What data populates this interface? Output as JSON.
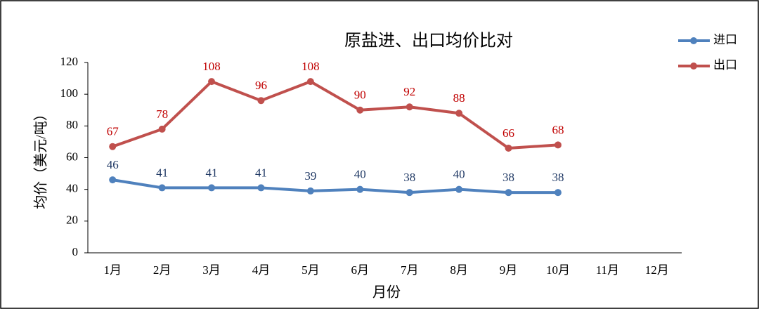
{
  "chart_data": {
    "type": "line",
    "title": "原盐进、出口均价比对",
    "x_label": "月份",
    "y_label": "均价（美元/吨）",
    "categories": [
      "1月",
      "2月",
      "3月",
      "4月",
      "5月",
      "6月",
      "7月",
      "8月",
      "9月",
      "10月",
      "11月",
      "12月"
    ],
    "series": [
      {
        "name": "进口",
        "color": "#4f81bd",
        "label_color": "#1f3864",
        "values": [
          46,
          41,
          41,
          41,
          39,
          40,
          38,
          40,
          38,
          38,
          null,
          null
        ]
      },
      {
        "name": "出口",
        "color": "#c0504d",
        "label_color": "#c00000",
        "values": [
          67,
          78,
          108,
          96,
          108,
          90,
          92,
          88,
          66,
          68,
          null,
          null
        ]
      }
    ],
    "ylim": [
      0,
      120
    ],
    "yticks": [
      0,
      20,
      40,
      60,
      80,
      100,
      120
    ],
    "grid": false,
    "legend": "top-right"
  }
}
